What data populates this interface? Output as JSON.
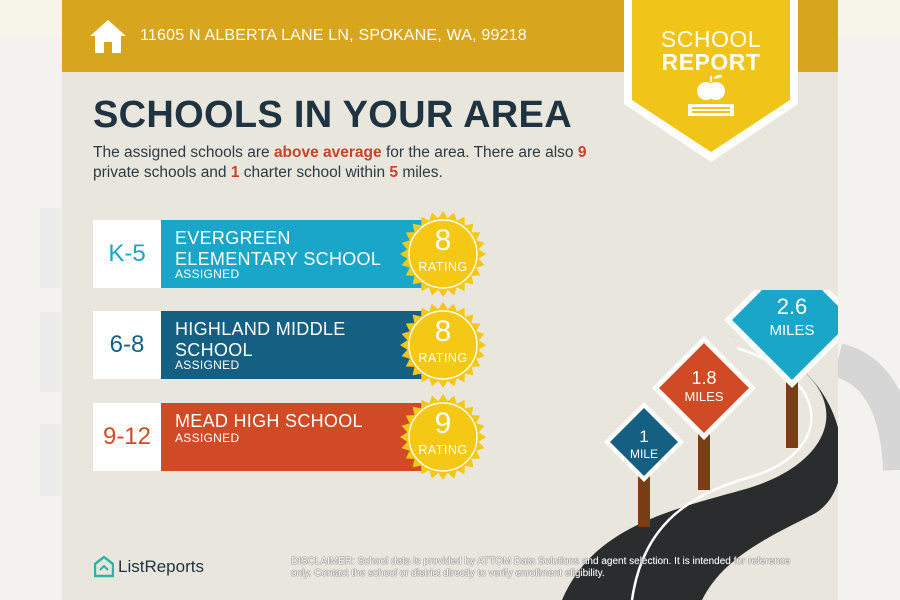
{
  "header": {
    "address": "11605 N ALBERTA LANE LN, SPOKANE, WA, 99218",
    "badge_line1": "SCHOOL",
    "badge_line2": "REPORT"
  },
  "title": "SCHOOLS IN YOUR AREA",
  "intro": {
    "p1": "The assigned schools are ",
    "h1": "above average",
    "p2": " for the area. There are also ",
    "h2": "9",
    "p3": " private schools and ",
    "h3": "1",
    "p4": " charter school within ",
    "h4": "5",
    "p5": " miles."
  },
  "schools": [
    {
      "grade": "K-5",
      "name": "EVERGREEN ELEMENTARY SCHOOL",
      "status": "ASSIGNED",
      "rating": "8",
      "rating_label": "RATING"
    },
    {
      "grade": "6-8",
      "name": "HIGHLAND MIDDLE SCHOOL",
      "status": "ASSIGNED",
      "rating": "8",
      "rating_label": "RATING"
    },
    {
      "grade": "9-12",
      "name": "MEAD HIGH SCHOOL",
      "status": "ASSIGNED",
      "rating": "9",
      "rating_label": "RATING"
    }
  ],
  "signs": [
    {
      "value": "1",
      "unit": "MILE"
    },
    {
      "value": "1.8",
      "unit": "MILES"
    },
    {
      "value": "2.6",
      "unit": "MILES"
    }
  ],
  "footer": {
    "brand": "ListReports",
    "disclaimer_label": "DISCLAIMER:",
    "disclaimer_text": " School data is provided by ATTOM Data Solutions and agent selection. It is intended for reference only. Contact the school or district directly to verify enrollment eligibility."
  },
  "colors": {
    "header": "#d8a51e",
    "badge": "#f0c418",
    "elementary": "#1aa6c9",
    "middle": "#155f82",
    "high": "#d14a26",
    "seal": "#f5c815",
    "dark": "#1f3340"
  },
  "icons": [
    "home-icon",
    "apple-book-icon",
    "listreports-logo"
  ]
}
